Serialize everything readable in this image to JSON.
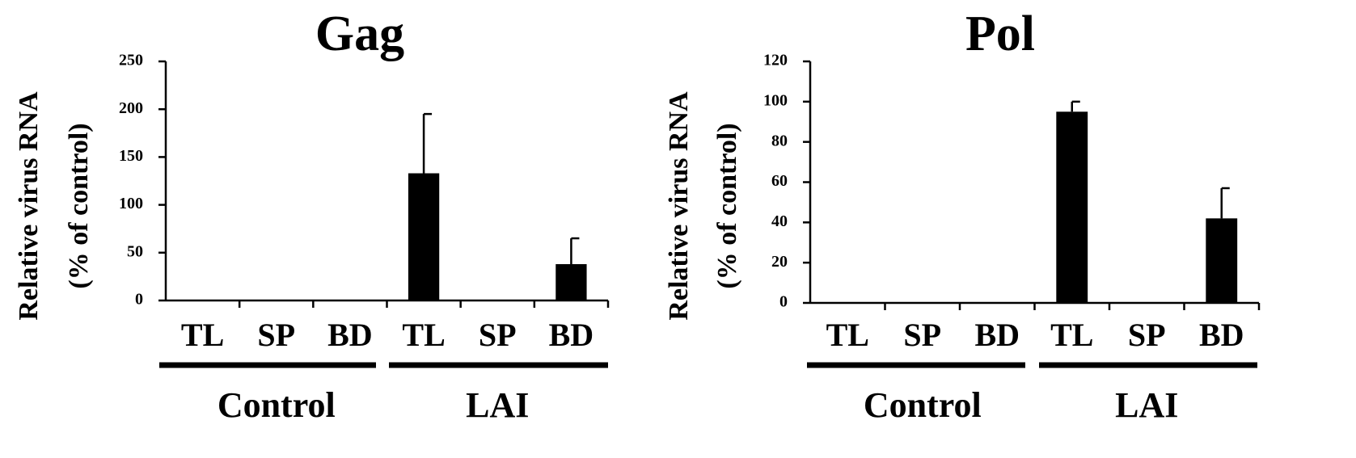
{
  "chart_data": [
    {
      "type": "bar",
      "title": "Gag",
      "ylabel_line1": "Relative virus RNA",
      "ylabel_line2": "(% of control)",
      "xlabel": "",
      "ylim": [
        0,
        250
      ],
      "yticks": [
        0,
        50,
        100,
        150,
        200,
        250
      ],
      "categories": [
        "TL",
        "SP",
        "BD",
        "TL",
        "SP",
        "BD"
      ],
      "values": [
        0,
        0,
        0,
        133,
        0,
        38
      ],
      "errors": [
        0,
        0,
        0,
        62,
        0,
        27
      ],
      "groups": [
        {
          "label": "Control",
          "categories": [
            0,
            1,
            2
          ]
        },
        {
          "label": "LAI",
          "categories": [
            3,
            4,
            5
          ]
        }
      ],
      "bar_color": "#000000",
      "grid": false,
      "legend": "none"
    },
    {
      "type": "bar",
      "title": "Pol",
      "ylabel_line1": "Relative virus RNA",
      "ylabel_line2": "(% of control)",
      "xlabel": "",
      "ylim": [
        0,
        120
      ],
      "yticks": [
        0,
        20,
        40,
        60,
        80,
        100,
        120
      ],
      "categories": [
        "TL",
        "SP",
        "BD",
        "TL",
        "SP",
        "BD"
      ],
      "values": [
        0,
        0,
        0,
        95,
        0,
        42
      ],
      "errors": [
        0,
        0,
        0,
        5,
        0,
        15
      ],
      "groups": [
        {
          "label": "Control",
          "categories": [
            0,
            1,
            2
          ]
        },
        {
          "label": "LAI",
          "categories": [
            3,
            4,
            5
          ]
        }
      ],
      "bar_color": "#000000",
      "grid": false,
      "legend": "none"
    }
  ]
}
